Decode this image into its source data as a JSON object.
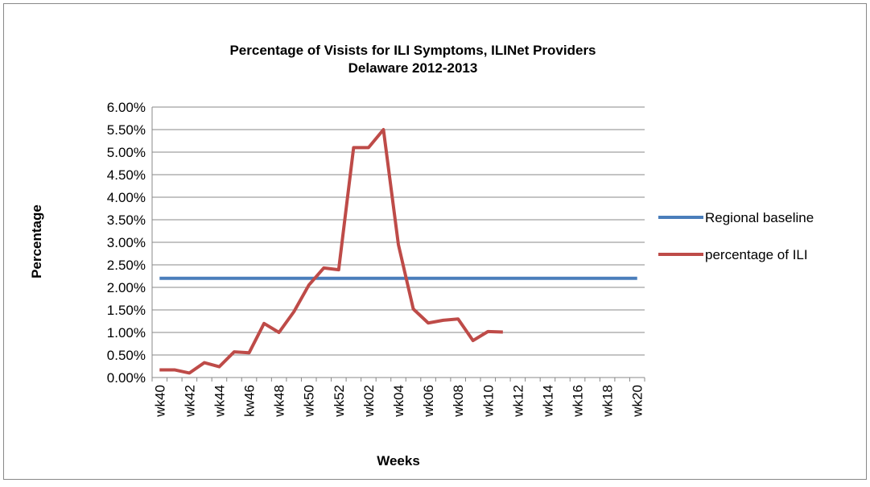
{
  "chart_data": {
    "type": "line",
    "title": [
      "Percentage of Visists for ILI Symptoms, ILINet Providers",
      "Delaware 2012-2013"
    ],
    "x_label": "Weeks",
    "y_label": "Percentage",
    "categories": [
      "wk40",
      null,
      "wk42",
      null,
      "wk44",
      null,
      "kw46",
      null,
      "wk48",
      null,
      "wk50",
      null,
      "wk52",
      null,
      "wk02",
      null,
      "wk04",
      null,
      "wk06",
      null,
      "wk08",
      null,
      "wk10",
      null,
      "wk12",
      null,
      "wk14",
      null,
      "wk16",
      null,
      "wk18",
      null,
      "wk20"
    ],
    "series": [
      {
        "name": "Regional baseline",
        "color": "#4a7ebb",
        "values": [
          2.2,
          2.2,
          2.2,
          2.2,
          2.2,
          2.2,
          2.2,
          2.2,
          2.2,
          2.2,
          2.2,
          2.2,
          2.2,
          2.2,
          2.2,
          2.2,
          2.2,
          2.2,
          2.2,
          2.2,
          2.2,
          2.2,
          2.2,
          2.2,
          2.2,
          2.2,
          2.2,
          2.2,
          2.2,
          2.2,
          2.2,
          2.2,
          2.2
        ]
      },
      {
        "name": "percentage of ILI",
        "color": "#be4b48",
        "values": [
          0.17,
          0.17,
          0.1,
          0.33,
          0.24,
          0.57,
          0.55,
          1.2,
          1.0,
          1.46,
          2.05,
          2.43,
          2.39,
          5.1,
          5.1,
          5.5,
          2.95,
          1.52,
          1.21,
          1.27,
          1.3,
          0.82,
          1.02,
          1.01,
          null,
          null,
          null,
          null,
          null,
          null,
          null,
          null,
          null
        ]
      }
    ],
    "ylim": [
      0,
      6
    ],
    "yticks": [
      {
        "value": 0,
        "label": "0.00%"
      },
      {
        "value": 0.5,
        "label": "0.50%"
      },
      {
        "value": 1,
        "label": "1.00%"
      },
      {
        "value": 1.5,
        "label": "1.50%"
      },
      {
        "value": 2,
        "label": "2.00%"
      },
      {
        "value": 2.5,
        "label": "2.50%"
      },
      {
        "value": 3,
        "label": "3.00%"
      },
      {
        "value": 3.5,
        "label": "3.50%"
      },
      {
        "value": 4,
        "label": "4.00%"
      },
      {
        "value": 4.5,
        "label": "4.50%"
      },
      {
        "value": 5,
        "label": "5.00%"
      },
      {
        "value": 5.5,
        "label": "5.50%"
      },
      {
        "value": 6,
        "label": "6.00%"
      }
    ],
    "grid": true,
    "legend": "right"
  }
}
